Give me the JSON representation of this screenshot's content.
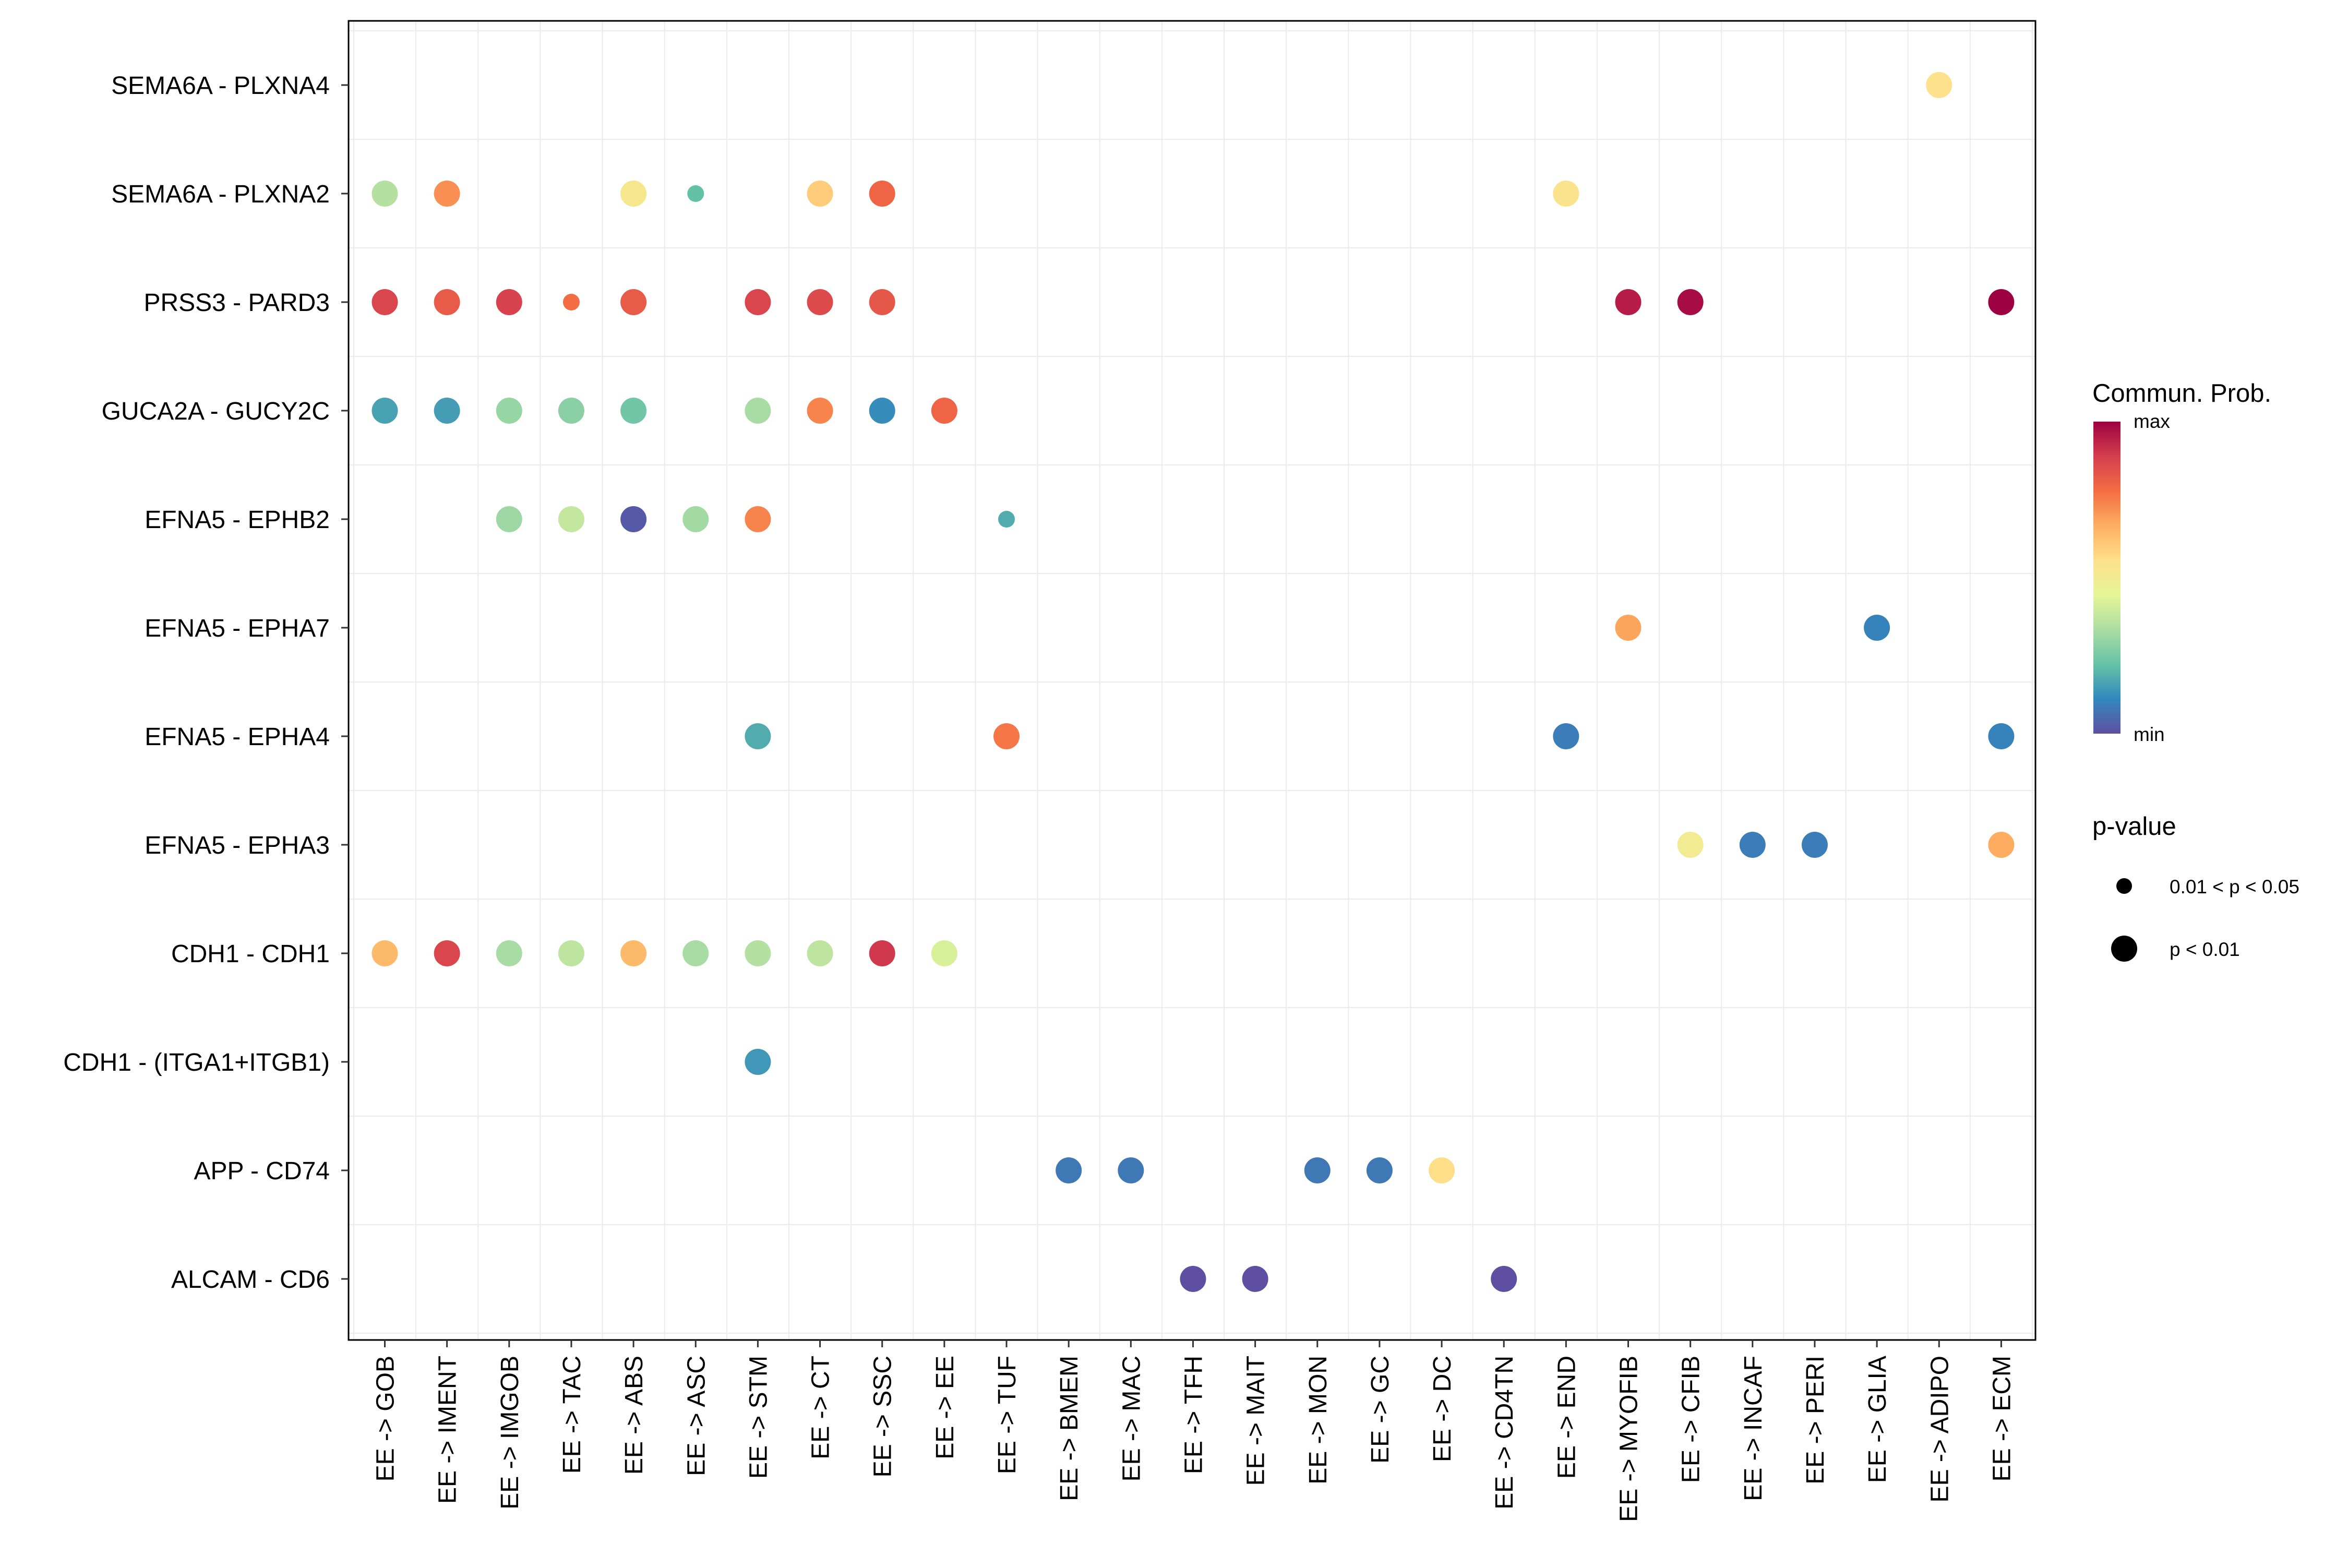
{
  "chart_data": {
    "type": "dot",
    "title": "",
    "xlabel": "",
    "ylabel": "",
    "grid": true,
    "x_categories": [
      "EE -> GOB",
      "EE -> IMENT",
      "EE -> IMGOB",
      "EE -> TAC",
      "EE -> ABS",
      "EE -> ASC",
      "EE -> STM",
      "EE -> CT",
      "EE -> SSC",
      "EE -> EE",
      "EE -> TUF",
      "EE -> BMEM",
      "EE -> MAC",
      "EE -> TFH",
      "EE -> MAIT",
      "EE -> MON",
      "EE -> GC",
      "EE -> DC",
      "EE -> CD4TN",
      "EE -> END",
      "EE -> MYOFIB",
      "EE -> CFIB",
      "EE -> INCAF",
      "EE -> PERI",
      "EE -> GLIA",
      "EE -> ADIPO",
      "EE -> ECM"
    ],
    "y_categories": [
      "SEMA6A - PLXNA4",
      "SEMA6A - PLXNA2",
      "PRSS3 - PARD3",
      "GUCA2A - GUCY2C",
      "EFNA5 - EPHB2",
      "EFNA5 - EPHA7",
      "EFNA5 - EPHA4",
      "EFNA5 - EPHA3",
      "CDH1 - CDH1",
      "CDH1 - (ITGA1+ITGB1)",
      "APP - CD74",
      "ALCAM - CD6"
    ],
    "points": [
      {
        "x": "EE -> ADIPO",
        "y": "SEMA6A - PLXNA4",
        "prob": 0.55,
        "pval": "p < 0.01"
      },
      {
        "x": "EE -> GOB",
        "y": "SEMA6A - PLXNA2",
        "prob": 0.35,
        "pval": "p < 0.01"
      },
      {
        "x": "EE -> IMENT",
        "y": "SEMA6A - PLXNA2",
        "prob": 0.72,
        "pval": "p < 0.01"
      },
      {
        "x": "EE -> ABS",
        "y": "SEMA6A - PLXNA2",
        "prob": 0.52,
        "pval": "p < 0.01"
      },
      {
        "x": "EE -> ASC",
        "y": "SEMA6A - PLXNA2",
        "prob": 0.22,
        "pval": "0.01 < p < 0.05"
      },
      {
        "x": "EE -> CT",
        "y": "SEMA6A - PLXNA2",
        "prob": 0.6,
        "pval": "p < 0.01"
      },
      {
        "x": "EE -> SSC",
        "y": "SEMA6A - PLXNA2",
        "prob": 0.8,
        "pval": "p < 0.01"
      },
      {
        "x": "EE -> END",
        "y": "SEMA6A - PLXNA2",
        "prob": 0.54,
        "pval": "p < 0.01"
      },
      {
        "x": "EE -> GOB",
        "y": "PRSS3 - PARD3",
        "prob": 0.87,
        "pval": "p < 0.01"
      },
      {
        "x": "EE -> IMENT",
        "y": "PRSS3 - PARD3",
        "prob": 0.82,
        "pval": "p < 0.01"
      },
      {
        "x": "EE -> IMGOB",
        "y": "PRSS3 - PARD3",
        "prob": 0.88,
        "pval": "p < 0.01"
      },
      {
        "x": "EE -> TAC",
        "y": "PRSS3 - PARD3",
        "prob": 0.78,
        "pval": "0.01 < p < 0.05"
      },
      {
        "x": "EE -> ABS",
        "y": "PRSS3 - PARD3",
        "prob": 0.82,
        "pval": "p < 0.01"
      },
      {
        "x": "EE -> STM",
        "y": "PRSS3 - PARD3",
        "prob": 0.87,
        "pval": "p < 0.01"
      },
      {
        "x": "EE -> CT",
        "y": "PRSS3 - PARD3",
        "prob": 0.86,
        "pval": "p < 0.01"
      },
      {
        "x": "EE -> SSC",
        "y": "PRSS3 - PARD3",
        "prob": 0.83,
        "pval": "p < 0.01"
      },
      {
        "x": "EE -> MYOFIB",
        "y": "PRSS3 - PARD3",
        "prob": 0.95,
        "pval": "p < 0.01"
      },
      {
        "x": "EE -> CFIB",
        "y": "PRSS3 - PARD3",
        "prob": 0.98,
        "pval": "p < 0.01"
      },
      {
        "x": "EE -> ECM",
        "y": "PRSS3 - PARD3",
        "prob": 1.0,
        "pval": "p < 0.01"
      },
      {
        "x": "EE -> GOB",
        "y": "GUCA2A - GUCY2C",
        "prob": 0.16,
        "pval": "p < 0.01"
      },
      {
        "x": "EE -> IMENT",
        "y": "GUCA2A - GUCY2C",
        "prob": 0.15,
        "pval": "p < 0.01"
      },
      {
        "x": "EE -> IMGOB",
        "y": "GUCA2A - GUCY2C",
        "prob": 0.3,
        "pval": "p < 0.01"
      },
      {
        "x": "EE -> TAC",
        "y": "GUCA2A - GUCY2C",
        "prob": 0.28,
        "pval": "p < 0.01"
      },
      {
        "x": "EE -> ABS",
        "y": "GUCA2A - GUCY2C",
        "prob": 0.24,
        "pval": "p < 0.01"
      },
      {
        "x": "EE -> STM",
        "y": "GUCA2A - GUCY2C",
        "prob": 0.33,
        "pval": "p < 0.01"
      },
      {
        "x": "EE -> CT",
        "y": "GUCA2A - GUCY2C",
        "prob": 0.74,
        "pval": "p < 0.01"
      },
      {
        "x": "EE -> SSC",
        "y": "GUCA2A - GUCY2C",
        "prob": 0.12,
        "pval": "p < 0.01"
      },
      {
        "x": "EE -> EE",
        "y": "GUCA2A - GUCY2C",
        "prob": 0.8,
        "pval": "p < 0.01"
      },
      {
        "x": "EE -> IMGOB",
        "y": "EFNA5 - EPHB2",
        "prob": 0.31,
        "pval": "p < 0.01"
      },
      {
        "x": "EE -> TAC",
        "y": "EFNA5 - EPHB2",
        "prob": 0.38,
        "pval": "p < 0.01"
      },
      {
        "x": "EE -> ABS",
        "y": "EFNA5 - EPHB2",
        "prob": 0.02,
        "pval": "p < 0.01"
      },
      {
        "x": "EE -> ASC",
        "y": "EFNA5 - EPHB2",
        "prob": 0.32,
        "pval": "p < 0.01"
      },
      {
        "x": "EE -> STM",
        "y": "EFNA5 - EPHB2",
        "prob": 0.74,
        "pval": "p < 0.01"
      },
      {
        "x": "EE -> TUF",
        "y": "EFNA5 - EPHB2",
        "prob": 0.18,
        "pval": "0.01 < p < 0.05"
      },
      {
        "x": "EE -> MYOFIB",
        "y": "EFNA5 - EPHA7",
        "prob": 0.68,
        "pval": "p < 0.01"
      },
      {
        "x": "EE -> GLIA",
        "y": "EFNA5 - EPHA7",
        "prob": 0.1,
        "pval": "p < 0.01"
      },
      {
        "x": "EE -> STM",
        "y": "EFNA5 - EPHA4",
        "prob": 0.18,
        "pval": "p < 0.01"
      },
      {
        "x": "EE -> TUF",
        "y": "EFNA5 - EPHA4",
        "prob": 0.76,
        "pval": "p < 0.01"
      },
      {
        "x": "EE -> END",
        "y": "EFNA5 - EPHA4",
        "prob": 0.09,
        "pval": "p < 0.01"
      },
      {
        "x": "EE -> ECM",
        "y": "EFNA5 - EPHA4",
        "prob": 0.1,
        "pval": "p < 0.01"
      },
      {
        "x": "EE -> CFIB",
        "y": "EFNA5 - EPHA3",
        "prob": 0.5,
        "pval": "p < 0.01"
      },
      {
        "x": "EE -> INCAF",
        "y": "EFNA5 - EPHA3",
        "prob": 0.09,
        "pval": "p < 0.01"
      },
      {
        "x": "EE -> PERI",
        "y": "EFNA5 - EPHA3",
        "prob": 0.09,
        "pval": "p < 0.01"
      },
      {
        "x": "EE -> ECM",
        "y": "EFNA5 - EPHA3",
        "prob": 0.67,
        "pval": "p < 0.01"
      },
      {
        "x": "EE -> GOB",
        "y": "CDH1 - CDH1",
        "prob": 0.64,
        "pval": "p < 0.01"
      },
      {
        "x": "EE -> IMENT",
        "y": "CDH1 - CDH1",
        "prob": 0.87,
        "pval": "p < 0.01"
      },
      {
        "x": "EE -> IMGOB",
        "y": "CDH1 - CDH1",
        "prob": 0.33,
        "pval": "p < 0.01"
      },
      {
        "x": "EE -> TAC",
        "y": "CDH1 - CDH1",
        "prob": 0.37,
        "pval": "p < 0.01"
      },
      {
        "x": "EE -> ABS",
        "y": "CDH1 - CDH1",
        "prob": 0.64,
        "pval": "p < 0.01"
      },
      {
        "x": "EE -> ASC",
        "y": "CDH1 - CDH1",
        "prob": 0.33,
        "pval": "p < 0.01"
      },
      {
        "x": "EE -> STM",
        "y": "CDH1 - CDH1",
        "prob": 0.35,
        "pval": "p < 0.01"
      },
      {
        "x": "EE -> CT",
        "y": "CDH1 - CDH1",
        "prob": 0.37,
        "pval": "p < 0.01"
      },
      {
        "x": "EE -> SSC",
        "y": "CDH1 - CDH1",
        "prob": 0.9,
        "pval": "p < 0.01"
      },
      {
        "x": "EE -> EE",
        "y": "CDH1 - CDH1",
        "prob": 0.42,
        "pval": "p < 0.01"
      },
      {
        "x": "EE -> STM",
        "y": "CDH1 - (ITGA1+ITGB1)",
        "prob": 0.14,
        "pval": "p < 0.01"
      },
      {
        "x": "EE -> BMEM",
        "y": "APP - CD74",
        "prob": 0.08,
        "pval": "p < 0.01"
      },
      {
        "x": "EE -> MAC",
        "y": "APP - CD74",
        "prob": 0.08,
        "pval": "p < 0.01"
      },
      {
        "x": "EE -> MON",
        "y": "APP - CD74",
        "prob": 0.08,
        "pval": "p < 0.01"
      },
      {
        "x": "EE -> GC",
        "y": "APP - CD74",
        "prob": 0.08,
        "pval": "p < 0.01"
      },
      {
        "x": "EE -> DC",
        "y": "APP - CD74",
        "prob": 0.56,
        "pval": "p < 0.01"
      },
      {
        "x": "EE -> TFH",
        "y": "ALCAM - CD6",
        "prob": 0.0,
        "pval": "p < 0.01"
      },
      {
        "x": "EE -> MAIT",
        "y": "ALCAM - CD6",
        "prob": 0.0,
        "pval": "p < 0.01"
      },
      {
        "x": "EE -> CD4TN",
        "y": "ALCAM - CD6",
        "prob": 0.0,
        "pval": "p < 0.01"
      }
    ],
    "color_legend": {
      "title": "Commun. Prob.",
      "max_label": "max",
      "min_label": "min"
    },
    "size_legend": {
      "title": "p-value",
      "entries": [
        "0.01 < p < 0.05",
        "p < 0.01"
      ]
    },
    "palette": [
      "#5E4FA2",
      "#3288BD",
      "#66C2A5",
      "#ABDDA4",
      "#E6F598",
      "#FEE08B",
      "#FDAE61",
      "#F46D43",
      "#D53E4F",
      "#9E0142"
    ]
  }
}
